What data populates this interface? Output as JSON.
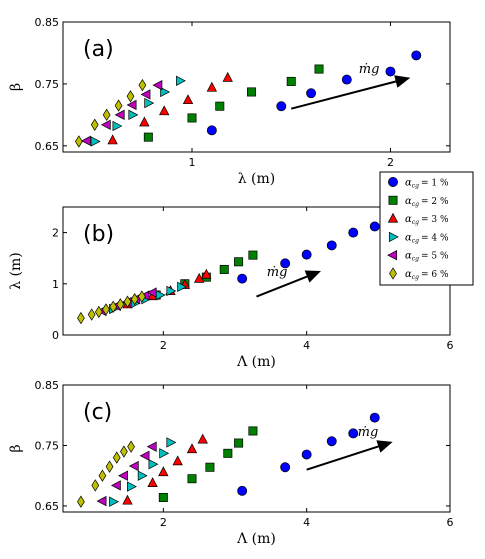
{
  "chart_data": [
    {
      "type": "scatter",
      "panel_label": "(a)",
      "xlabel": "λ (m)",
      "ylabel": "β",
      "xlim": [
        0.35,
        2.3
      ],
      "ylim": [
        0.64,
        0.85
      ],
      "xticks": [
        1,
        2
      ],
      "xtick_labels": [
        "1",
        "2"
      ],
      "yticks": [
        0.65,
        0.75,
        0.85
      ],
      "ytick_labels": [
        "0.65",
        "0.75",
        "0.85"
      ],
      "annotation": "ṁg",
      "arrow": {
        "from": [
          1.5,
          0.71
        ],
        "to": [
          2.1,
          0.76
        ]
      },
      "series": [
        {
          "name": "αcg = 1 %",
          "marker": "circle",
          "color": "#0000ff",
          "x": [
            1.1,
            1.45,
            1.6,
            1.78,
            2.0,
            2.13
          ],
          "y": [
            0.675,
            0.714,
            0.735,
            0.757,
            0.77,
            0.796
          ]
        },
        {
          "name": "αcg = 2 %",
          "marker": "square",
          "color": "#008000",
          "x": [
            0.78,
            1.0,
            1.14,
            1.3,
            1.5,
            1.64
          ],
          "y": [
            0.664,
            0.695,
            0.714,
            0.737,
            0.754,
            0.774
          ]
        },
        {
          "name": "αcg = 3 %",
          "marker": "triangle-up",
          "color": "#ff0000",
          "x": [
            0.6,
            0.76,
            0.86,
            0.98,
            1.1,
            1.18
          ],
          "y": [
            0.659,
            0.688,
            0.706,
            0.724,
            0.744,
            0.76
          ]
        },
        {
          "name": "αcg = 4 %",
          "marker": "triangle-right",
          "color": "#00bfbf",
          "x": [
            0.51,
            0.62,
            0.7,
            0.78,
            0.86,
            0.94
          ],
          "y": [
            0.657,
            0.682,
            0.7,
            0.719,
            0.737,
            0.755
          ]
        },
        {
          "name": "αcg = 5 %",
          "marker": "triangle-left",
          "color": "#bf00bf",
          "x": [
            0.47,
            0.57,
            0.64,
            0.7,
            0.77,
            0.83
          ],
          "y": [
            0.658,
            0.684,
            0.7,
            0.716,
            0.733,
            0.748
          ]
        },
        {
          "name": "αcg = 6 %",
          "marker": "diamond",
          "color": "#bfbf00",
          "x": [
            0.43,
            0.51,
            0.57,
            0.63,
            0.69,
            0.75
          ],
          "y": [
            0.657,
            0.684,
            0.7,
            0.715,
            0.73,
            0.748
          ]
        }
      ]
    },
    {
      "type": "scatter",
      "panel_label": "(b)",
      "xlabel": "Λ (m)",
      "ylabel": "λ (m)",
      "xlim": [
        0.6,
        6.0
      ],
      "ylim": [
        0,
        2.5
      ],
      "xticks": [
        2,
        4,
        6
      ],
      "xtick_labels": [
        "2",
        "4",
        "6"
      ],
      "yticks": [
        0,
        1,
        2
      ],
      "ytick_labels": [
        "0",
        "1",
        "2"
      ],
      "annotation": "ṁg",
      "arrow": {
        "from": [
          3.3,
          0.75
        ],
        "to": [
          4.2,
          1.25
        ]
      },
      "series": [
        {
          "name": "αcg = 1 %",
          "marker": "circle",
          "color": "#0000ff",
          "x": [
            3.1,
            3.7,
            4.0,
            4.35,
            4.65,
            4.95,
            5.25
          ],
          "y": [
            1.1,
            1.4,
            1.57,
            1.75,
            2.0,
            2.12,
            2.25
          ]
        },
        {
          "name": "αcg = 2 %",
          "marker": "square",
          "color": "#008000",
          "x": [
            1.9,
            2.3,
            2.6,
            2.85,
            3.05,
            3.25
          ],
          "y": [
            0.78,
            1.0,
            1.13,
            1.28,
            1.43,
            1.56
          ]
        },
        {
          "name": "αcg = 3 %",
          "marker": "triangle-up",
          "color": "#ff0000",
          "x": [
            1.5,
            1.85,
            2.1,
            2.3,
            2.5,
            2.6
          ],
          "y": [
            0.6,
            0.76,
            0.86,
            0.98,
            1.1,
            1.18
          ]
        },
        {
          "name": "αcg = 4 %",
          "marker": "triangle-right",
          "color": "#00bfbf",
          "x": [
            1.3,
            1.6,
            1.75,
            1.95,
            2.1,
            2.25
          ],
          "y": [
            0.51,
            0.62,
            0.7,
            0.78,
            0.86,
            0.94
          ]
        },
        {
          "name": "αcg = 5 %",
          "marker": "triangle-left",
          "color": "#bf00bf",
          "x": [
            1.15,
            1.35,
            1.5,
            1.62,
            1.75,
            1.85
          ],
          "y": [
            0.47,
            0.57,
            0.64,
            0.7,
            0.77,
            0.83
          ]
        },
        {
          "name": "αcg = 6 %",
          "marker": "diamond",
          "color": "#bfbf00",
          "x": [
            0.85,
            1.0,
            1.1,
            1.2,
            1.3,
            1.4,
            1.5,
            1.6,
            1.7
          ],
          "y": [
            0.33,
            0.4,
            0.45,
            0.5,
            0.55,
            0.6,
            0.65,
            0.7,
            0.75
          ]
        }
      ]
    },
    {
      "type": "scatter",
      "panel_label": "(c)",
      "xlabel": "Λ (m)",
      "ylabel": "β",
      "xlim": [
        0.6,
        6.0
      ],
      "ylim": [
        0.64,
        0.85
      ],
      "xticks": [
        2,
        4,
        6
      ],
      "xtick_labels": [
        "2",
        "4",
        "6"
      ],
      "yticks": [
        0.65,
        0.75,
        0.85
      ],
      "ytick_labels": [
        "0.65",
        "0.75",
        "0.85"
      ],
      "annotation": "ṁg",
      "arrow": {
        "from": [
          4.0,
          0.71
        ],
        "to": [
          5.2,
          0.756
        ]
      },
      "series": [
        {
          "name": "αcg = 1 %",
          "marker": "circle",
          "color": "#0000ff",
          "x": [
            3.1,
            3.7,
            4.0,
            4.35,
            4.65,
            4.95
          ],
          "y": [
            0.675,
            0.714,
            0.735,
            0.757,
            0.77,
            0.796
          ]
        },
        {
          "name": "αcg = 2 %",
          "marker": "square",
          "color": "#008000",
          "x": [
            2.0,
            2.4,
            2.65,
            2.9,
            3.05,
            3.25
          ],
          "y": [
            0.664,
            0.695,
            0.714,
            0.737,
            0.754,
            0.774
          ]
        },
        {
          "name": "αcg = 3 %",
          "marker": "triangle-up",
          "color": "#ff0000",
          "x": [
            1.5,
            1.85,
            2.0,
            2.2,
            2.4,
            2.55
          ],
          "y": [
            0.659,
            0.688,
            0.706,
            0.724,
            0.744,
            0.76
          ]
        },
        {
          "name": "αcg = 4 %",
          "marker": "triangle-right",
          "color": "#00bfbf",
          "x": [
            1.3,
            1.55,
            1.7,
            1.85,
            2.0,
            2.1
          ],
          "y": [
            0.657,
            0.682,
            0.7,
            0.719,
            0.737,
            0.755
          ]
        },
        {
          "name": "αcg = 5 %",
          "marker": "triangle-left",
          "color": "#bf00bf",
          "x": [
            1.15,
            1.35,
            1.45,
            1.6,
            1.75,
            1.85
          ],
          "y": [
            0.658,
            0.684,
            0.7,
            0.716,
            0.733,
            0.748
          ]
        },
        {
          "name": "αcg = 6 %",
          "marker": "diamond",
          "color": "#bfbf00",
          "x": [
            0.85,
            1.05,
            1.15,
            1.25,
            1.35,
            1.45,
            1.55
          ],
          "y": [
            0.657,
            0.684,
            0.7,
            0.715,
            0.73,
            0.74,
            0.748
          ]
        }
      ]
    }
  ],
  "legend": {
    "placement": "right",
    "entries": [
      {
        "symbol": "α",
        "subscript": "cg",
        "value": "= 1 %",
        "marker": "circle",
        "color": "#0000ff"
      },
      {
        "symbol": "α",
        "subscript": "cg",
        "value": "= 2 %",
        "marker": "square",
        "color": "#008000"
      },
      {
        "symbol": "α",
        "subscript": "cg",
        "value": "= 3 %",
        "marker": "triangle-up",
        "color": "#ff0000"
      },
      {
        "symbol": "α",
        "subscript": "cg",
        "value": "= 4 %",
        "marker": "triangle-right",
        "color": "#00bfbf"
      },
      {
        "symbol": "α",
        "subscript": "cg",
        "value": "= 5 %",
        "marker": "triangle-left",
        "color": "#bf00bf"
      },
      {
        "symbol": "α",
        "subscript": "cg",
        "value": "= 6 %",
        "marker": "diamond",
        "color": "#bfbf00"
      }
    ]
  }
}
